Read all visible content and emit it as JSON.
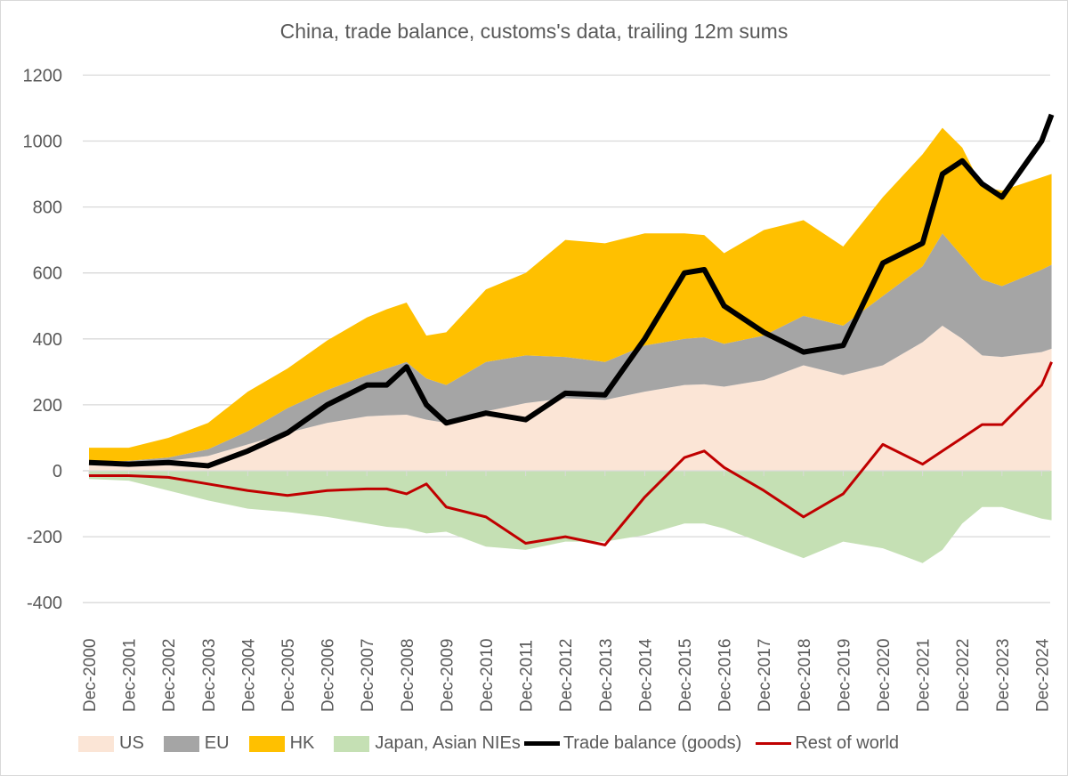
{
  "chart_data": {
    "type": "area",
    "title": "China, trade balance, customs's data, trailing 12m sums",
    "xlabel": "",
    "ylabel": "",
    "ylim": [
      -400,
      1200
    ],
    "yticks": [
      "1200",
      "1000",
      "800",
      "600",
      "400",
      "200",
      "0",
      "-200",
      "-400"
    ],
    "ytick_values": [
      1200,
      1000,
      800,
      600,
      400,
      200,
      0,
      -200,
      -400
    ],
    "xticks": [
      "Dec-2000",
      "Dec-2001",
      "Dec-2002",
      "Dec-2003",
      "Dec-2004",
      "Dec-2005",
      "Dec-2006",
      "Dec-2007",
      "Dec-2008",
      "Dec-2009",
      "Dec-2010",
      "Dec-2011",
      "Dec-2012",
      "Dec-2013",
      "Dec-2014",
      "Dec-2015",
      "Dec-2016",
      "Dec-2017",
      "Dec-2018",
      "Dec-2019",
      "Dec-2020",
      "Dec-2021",
      "Dec-2022",
      "Dec-2023",
      "Dec-2024"
    ],
    "x_note": "years since Dec-2000 offset: x=2000 means Dec-2000",
    "x": [
      2000,
      2001,
      2002,
      2003,
      2004,
      2005,
      2006,
      2007,
      2007.5,
      2008,
      2008.5,
      2009,
      2010,
      2011,
      2012,
      2013,
      2014,
      2015,
      2015.5,
      2016,
      2017,
      2018,
      2019,
      2020,
      2021,
      2021.5,
      2022,
      2022.5,
      2023,
      2024,
      2024.25
    ],
    "grid": true,
    "legend_position": "bottom",
    "series": [
      {
        "name": "US",
        "kind": "stacked-area",
        "color": "#FBE5D6",
        "values": [
          20,
          25,
          30,
          45,
          80,
          115,
          145,
          165,
          168,
          170,
          155,
          145,
          180,
          205,
          220,
          215,
          240,
          260,
          262,
          255,
          275,
          320,
          290,
          320,
          390,
          440,
          400,
          350,
          345,
          360,
          370
        ]
      },
      {
        "name": "EU",
        "kind": "stacked-area",
        "color": "#A5A5A5",
        "values": [
          5,
          5,
          10,
          20,
          40,
          75,
          100,
          125,
          142,
          160,
          125,
          115,
          150,
          145,
          125,
          115,
          140,
          140,
          143,
          130,
          135,
          150,
          150,
          210,
          230,
          280,
          250,
          230,
          215,
          250,
          255
        ]
      },
      {
        "name": "HK",
        "kind": "stacked-area",
        "color": "#FFC000",
        "values": [
          45,
          40,
          60,
          80,
          120,
          120,
          150,
          175,
          180,
          180,
          130,
          160,
          220,
          250,
          355,
          360,
          340,
          320,
          310,
          275,
          320,
          290,
          240,
          300,
          340,
          320,
          330,
          280,
          290,
          280,
          275
        ]
      },
      {
        "name": "Japan, Asian NIEs",
        "kind": "area",
        "color": "#C5E0B4",
        "values": [
          -25,
          -30,
          -60,
          -90,
          -115,
          -125,
          -140,
          -160,
          -170,
          -175,
          -190,
          -185,
          -230,
          -240,
          -215,
          -215,
          -195,
          -160,
          -160,
          -175,
          -220,
          -265,
          -215,
          -235,
          -280,
          -240,
          -160,
          -110,
          -110,
          -145,
          -150
        ]
      },
      {
        "name": "Trade balance (goods)",
        "kind": "line",
        "color": "#000000",
        "values": [
          25,
          20,
          25,
          15,
          60,
          115,
          200,
          260,
          260,
          315,
          200,
          145,
          175,
          155,
          235,
          230,
          400,
          600,
          610,
          500,
          420,
          360,
          380,
          630,
          690,
          900,
          940,
          870,
          830,
          1000,
          1080
        ]
      },
      {
        "name": "Rest of world",
        "kind": "line",
        "color": "#C00000",
        "values": [
          -15,
          -15,
          -20,
          -40,
          -60,
          -75,
          -60,
          -55,
          -55,
          -70,
          -40,
          -110,
          -140,
          -220,
          -200,
          -225,
          -80,
          40,
          60,
          10,
          -60,
          -140,
          -70,
          80,
          20,
          60,
          100,
          140,
          140,
          260,
          330
        ]
      }
    ]
  }
}
